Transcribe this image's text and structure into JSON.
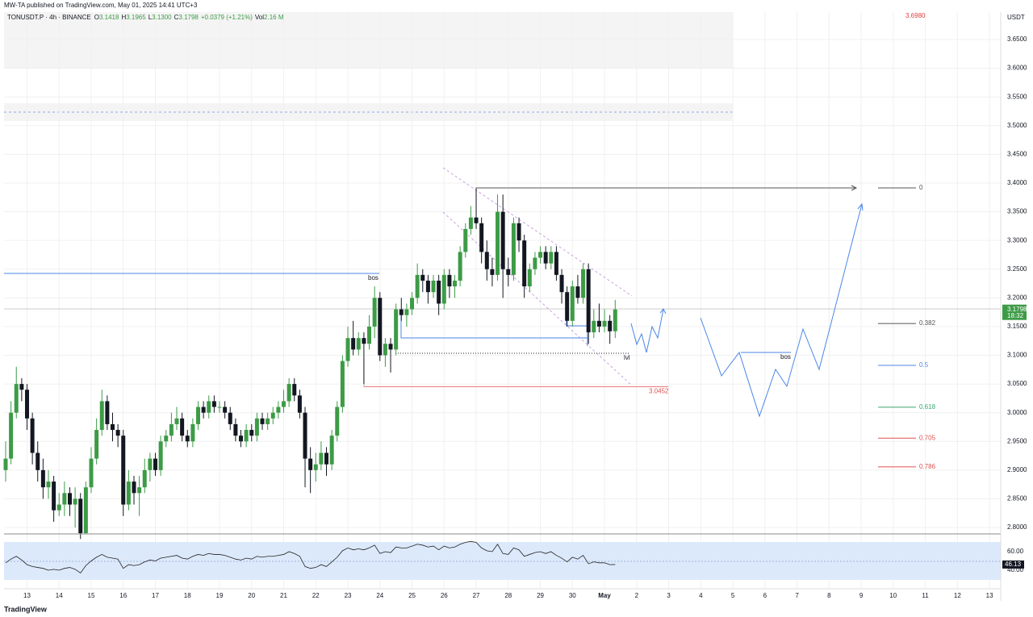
{
  "header": {
    "published": "MW-TA published on TradingView.com, May 01, 2025 14:41 UTC+3",
    "symbol": "TONUSDT.P · 4h · BINANCE",
    "o_label": "O",
    "o": "3.1418",
    "h_label": "H",
    "h": "3.1965",
    "l_label": "L",
    "l": "3.1300",
    "c_label": "C",
    "c": "3.1798",
    "change": "+0.0379 (+1.21%)",
    "vol_label": "Vol",
    "vol": "2.16 M",
    "currency": "USDT",
    "countdown": "18:32",
    "logo": "TradingView"
  },
  "chart_data": [
    {
      "type": "candlestick",
      "up_color": "#3d9b46",
      "down_color": "#131722",
      "candles": [
        [
          2.9,
          2.95,
          2.88,
          2.92
        ],
        [
          2.92,
          3.02,
          2.91,
          3.0
        ],
        [
          3.0,
          3.08,
          2.99,
          3.05
        ],
        [
          3.05,
          3.06,
          3.02,
          3.04
        ],
        [
          3.04,
          3.05,
          2.97,
          2.99
        ],
        [
          2.99,
          3.0,
          2.91,
          2.93
        ],
        [
          2.93,
          2.95,
          2.88,
          2.9
        ],
        [
          2.9,
          2.92,
          2.85,
          2.87
        ],
        [
          2.87,
          2.9,
          2.85,
          2.88
        ],
        [
          2.88,
          2.89,
          2.81,
          2.83
        ],
        [
          2.83,
          2.86,
          2.82,
          2.84
        ],
        [
          2.84,
          2.88,
          2.82,
          2.86
        ],
        [
          2.86,
          2.87,
          2.82,
          2.84
        ],
        [
          2.84,
          2.87,
          2.8,
          2.85
        ],
        [
          2.85,
          2.86,
          2.78,
          2.79
        ],
        [
          2.79,
          2.88,
          2.79,
          2.87
        ],
        [
          2.87,
          2.94,
          2.86,
          2.92
        ],
        [
          2.92,
          2.99,
          2.91,
          2.97
        ],
        [
          2.97,
          3.04,
          2.96,
          3.02
        ],
        [
          3.02,
          3.03,
          2.97,
          2.98
        ],
        [
          2.98,
          3.0,
          2.95,
          2.97
        ],
        [
          2.97,
          2.98,
          2.94,
          2.96
        ],
        [
          2.96,
          2.97,
          2.82,
          2.84
        ],
        [
          2.84,
          2.9,
          2.83,
          2.88
        ],
        [
          2.88,
          2.89,
          2.84,
          2.86
        ],
        [
          2.86,
          2.89,
          2.82,
          2.87
        ],
        [
          2.87,
          2.92,
          2.86,
          2.9
        ],
        [
          2.9,
          2.93,
          2.88,
          2.92
        ],
        [
          2.92,
          2.93,
          2.89,
          2.9
        ],
        [
          2.9,
          2.96,
          2.89,
          2.95
        ],
        [
          2.95,
          2.97,
          2.94,
          2.96
        ],
        [
          2.96,
          3.0,
          2.95,
          2.98
        ],
        [
          2.98,
          3.01,
          2.97,
          2.99
        ],
        [
          2.99,
          3.0,
          2.95,
          2.96
        ],
        [
          2.96,
          2.97,
          2.94,
          2.95
        ],
        [
          2.95,
          2.99,
          2.94,
          2.98
        ],
        [
          2.98,
          3.02,
          2.97,
          3.01
        ],
        [
          3.01,
          3.02,
          2.99,
          3.0
        ],
        [
          3.0,
          3.03,
          2.99,
          3.02
        ],
        [
          3.02,
          3.03,
          3.0,
          3.01
        ],
        [
          3.01,
          3.02,
          3.0,
          3.01
        ],
        [
          3.01,
          3.02,
          2.99,
          3.0
        ],
        [
          3.0,
          3.01,
          2.97,
          2.98
        ],
        [
          2.98,
          2.99,
          2.95,
          2.96
        ],
        [
          2.96,
          2.97,
          2.94,
          2.95
        ],
        [
          2.95,
          2.98,
          2.94,
          2.97
        ],
        [
          2.97,
          2.98,
          2.95,
          2.96
        ],
        [
          2.96,
          3.0,
          2.95,
          2.99
        ],
        [
          2.99,
          3.0,
          2.97,
          2.98
        ],
        [
          2.98,
          3.0,
          2.97,
          2.99
        ],
        [
          2.99,
          3.01,
          2.98,
          3.0
        ],
        [
          3.0,
          3.02,
          2.99,
          3.01
        ],
        [
          3.01,
          3.04,
          3.0,
          3.02
        ],
        [
          3.02,
          3.06,
          3.01,
          3.05
        ],
        [
          3.05,
          3.06,
          3.02,
          3.03
        ],
        [
          3.03,
          3.04,
          2.99,
          3.0
        ],
        [
          3.0,
          3.01,
          2.87,
          2.92
        ],
        [
          2.92,
          2.94,
          2.86,
          2.9
        ],
        [
          2.9,
          2.93,
          2.88,
          2.91
        ],
        [
          2.91,
          2.95,
          2.9,
          2.93
        ],
        [
          2.93,
          2.94,
          2.89,
          2.91
        ],
        [
          2.91,
          2.97,
          2.9,
          2.96
        ],
        [
          2.96,
          3.02,
          2.95,
          3.01
        ],
        [
          3.01,
          3.1,
          3.0,
          3.09
        ],
        [
          3.09,
          3.15,
          3.08,
          3.13
        ],
        [
          3.13,
          3.16,
          3.1,
          3.11
        ],
        [
          3.11,
          3.14,
          3.1,
          3.13
        ],
        [
          3.13,
          3.14,
          3.05,
          3.12
        ],
        [
          3.12,
          3.17,
          3.11,
          3.15
        ],
        [
          3.15,
          3.22,
          3.13,
          3.2
        ],
        [
          3.2,
          3.21,
          3.09,
          3.1
        ],
        [
          3.1,
          3.13,
          3.08,
          3.12
        ],
        [
          3.12,
          3.13,
          3.07,
          3.11
        ],
        [
          3.11,
          3.19,
          3.1,
          3.18
        ],
        [
          3.18,
          3.2,
          3.16,
          3.17
        ],
        [
          3.17,
          3.19,
          3.15,
          3.18
        ],
        [
          3.18,
          3.21,
          3.17,
          3.2
        ],
        [
          3.2,
          3.26,
          3.19,
          3.24
        ],
        [
          3.24,
          3.25,
          3.21,
          3.23
        ],
        [
          3.23,
          3.24,
          3.19,
          3.21
        ],
        [
          3.21,
          3.24,
          3.2,
          3.23
        ],
        [
          3.23,
          3.24,
          3.17,
          3.19
        ],
        [
          3.19,
          3.25,
          3.18,
          3.24
        ],
        [
          3.24,
          3.25,
          3.2,
          3.22
        ],
        [
          3.22,
          3.24,
          3.2,
          3.23
        ],
        [
          3.23,
          3.29,
          3.22,
          3.28
        ],
        [
          3.28,
          3.33,
          3.27,
          3.32
        ],
        [
          3.32,
          3.36,
          3.31,
          3.34
        ],
        [
          3.34,
          3.39,
          3.32,
          3.33
        ],
        [
          3.33,
          3.34,
          3.26,
          3.28
        ],
        [
          3.28,
          3.3,
          3.23,
          3.25
        ],
        [
          3.25,
          3.27,
          3.22,
          3.24
        ],
        [
          3.24,
          3.38,
          3.23,
          3.35
        ],
        [
          3.35,
          3.38,
          3.2,
          3.25
        ],
        [
          3.25,
          3.27,
          3.22,
          3.24
        ],
        [
          3.24,
          3.34,
          3.23,
          3.33
        ],
        [
          3.33,
          3.34,
          3.28,
          3.3
        ],
        [
          3.3,
          3.31,
          3.2,
          3.22
        ],
        [
          3.22,
          3.26,
          3.21,
          3.25
        ],
        [
          3.25,
          3.28,
          3.24,
          3.27
        ],
        [
          3.27,
          3.29,
          3.26,
          3.28
        ],
        [
          3.28,
          3.29,
          3.25,
          3.26
        ],
        [
          3.26,
          3.29,
          3.25,
          3.28
        ],
        [
          3.28,
          3.29,
          3.23,
          3.24
        ],
        [
          3.24,
          3.25,
          3.19,
          3.21
        ],
        [
          3.21,
          3.22,
          3.15,
          3.16
        ],
        [
          3.16,
          3.23,
          3.15,
          3.22
        ],
        [
          3.22,
          3.24,
          3.19,
          3.2
        ],
        [
          3.2,
          3.26,
          3.19,
          3.25
        ],
        [
          3.25,
          3.26,
          3.12,
          3.14
        ],
        [
          3.14,
          3.18,
          3.13,
          3.16
        ],
        [
          3.16,
          3.19,
          3.14,
          3.15
        ],
        [
          3.15,
          3.18,
          3.14,
          3.16
        ],
        [
          3.16,
          3.17,
          3.12,
          3.1418
        ],
        [
          3.1418,
          3.1965,
          3.13,
          3.1798
        ]
      ],
      "xlim": [
        -0.3,
        186.1
      ],
      "xticks": [
        {
          "value": 4,
          "label": "13"
        },
        {
          "value": 10,
          "label": "14"
        },
        {
          "value": 16,
          "label": "15"
        },
        {
          "value": 22,
          "label": "16"
        },
        {
          "value": 28,
          "label": "17"
        },
        {
          "value": 34,
          "label": "18"
        },
        {
          "value": 40,
          "label": "19"
        },
        {
          "value": 46,
          "label": "20"
        },
        {
          "value": 52,
          "label": "21"
        },
        {
          "value": 58,
          "label": "22"
        },
        {
          "value": 64,
          "label": "23"
        },
        {
          "value": 70,
          "label": "24"
        },
        {
          "value": 76,
          "label": "25"
        },
        {
          "value": 82,
          "label": "26"
        },
        {
          "value": 88,
          "label": "27"
        },
        {
          "value": 94,
          "label": "28"
        },
        {
          "value": 100,
          "label": "29"
        },
        {
          "value": 106,
          "label": "30"
        },
        {
          "value": 112,
          "label": "May"
        },
        {
          "value": 118,
          "label": "2"
        },
        {
          "value": 124,
          "label": "3"
        },
        {
          "value": 130,
          "label": "4"
        },
        {
          "value": 136,
          "label": "5"
        },
        {
          "value": 142,
          "label": "6"
        },
        {
          "value": 148,
          "label": "7"
        },
        {
          "value": 154,
          "label": "8"
        },
        {
          "value": 160,
          "label": "9"
        },
        {
          "value": 166,
          "label": "10"
        },
        {
          "value": 172,
          "label": "11"
        },
        {
          "value": 178,
          "label": "12"
        },
        {
          "value": 184,
          "label": "13"
        }
      ],
      "ylim": [
        2.7888,
        3.6978
      ],
      "yticks": [
        {
          "value": 2.8,
          "label": "2.8000"
        },
        {
          "value": 2.85,
          "label": "2.8500"
        },
        {
          "value": 2.9,
          "label": "2.9000"
        },
        {
          "value": 2.95,
          "label": "2.9500"
        },
        {
          "value": 3.0,
          "label": "3.0000"
        },
        {
          "value": 3.05,
          "label": "3.0500"
        },
        {
          "value": 3.1,
          "label": "3.1000"
        },
        {
          "value": 3.15,
          "label": "3.1500"
        },
        {
          "value": 3.2,
          "label": "3.2000"
        },
        {
          "value": 3.25,
          "label": "3.2500"
        },
        {
          "value": 3.3,
          "label": "3.3000"
        },
        {
          "value": 3.35,
          "label": "3.3500"
        },
        {
          "value": 3.4,
          "label": "3.4000"
        },
        {
          "value": 3.45,
          "label": "3.4500"
        },
        {
          "value": 3.5,
          "label": "3.5000"
        },
        {
          "value": 3.55,
          "label": "3.5500"
        },
        {
          "value": 3.6,
          "label": "3.6000"
        },
        {
          "value": 3.65,
          "label": "3.6500"
        }
      ],
      "grid": true,
      "annotations": {
        "top_price": "3.6980",
        "bos1": "bos",
        "bos2": "bos",
        "lvl": "lvl",
        "low_level": 3.0452,
        "low_level_label": "3.0452"
      },
      "fib": [
        {
          "level": 0,
          "color": "#555555"
        },
        {
          "level": 0.382,
          "color": "#555555"
        },
        {
          "level": 0.5,
          "color": "#4a86e8"
        },
        {
          "level": 0.618,
          "color": "#3aa76d"
        },
        {
          "level": 0.705,
          "color": "#e05050"
        },
        {
          "level": 0.786,
          "color": "#e05050"
        }
      ]
    },
    {
      "type": "line",
      "name": "rsi",
      "color": "#222222",
      "values": [
        48,
        52,
        55,
        51,
        46,
        44,
        43,
        42,
        40,
        41,
        40,
        42,
        43,
        41,
        37,
        45,
        50,
        54,
        57,
        54,
        53,
        52,
        42,
        46,
        45,
        46,
        49,
        51,
        50,
        53,
        54,
        55,
        56,
        53,
        52,
        55,
        57,
        56,
        58,
        57,
        57,
        56,
        54,
        52,
        51,
        53,
        52,
        55,
        54,
        55,
        55,
        56,
        57,
        60,
        58,
        55,
        44,
        42,
        43,
        46,
        44,
        49,
        54,
        61,
        64,
        62,
        63,
        62,
        64,
        67,
        58,
        60,
        59,
        65,
        64,
        64,
        66,
        68,
        67,
        65,
        66,
        62,
        66,
        64,
        65,
        68,
        70,
        71,
        70,
        64,
        61,
        60,
        68,
        58,
        57,
        64,
        62,
        55,
        57,
        59,
        60,
        58,
        60,
        56,
        53,
        49,
        54,
        52,
        56,
        47,
        49,
        48,
        48,
        46,
        46.13
      ],
      "value_labels_last": "46.13",
      "ylim": [
        20,
        73.9
      ],
      "yticks": [
        {
          "value": 40,
          "label": "40.00"
        },
        {
          "value": 60,
          "label": "60.00"
        }
      ]
    }
  ]
}
